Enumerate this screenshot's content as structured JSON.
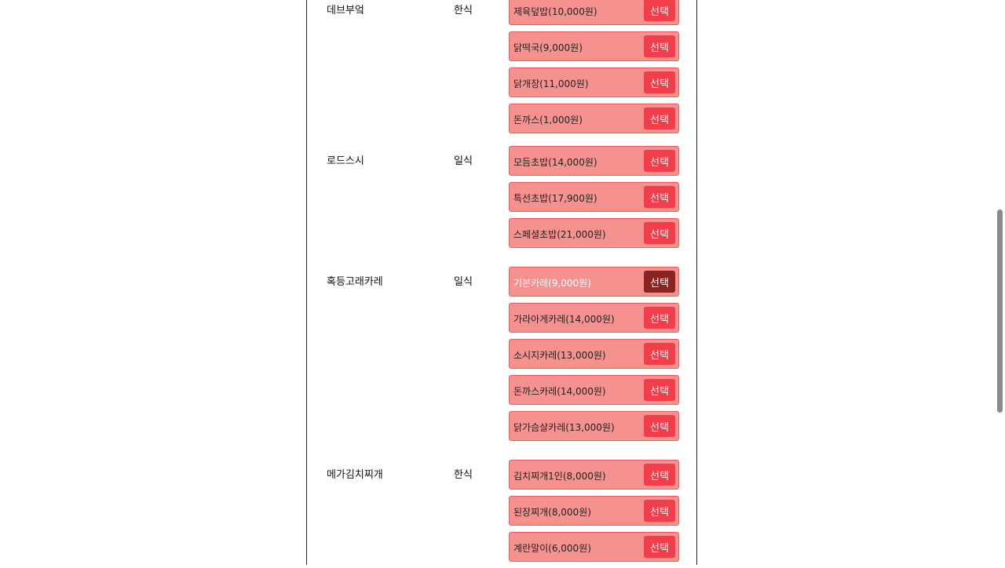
{
  "restaurants": [
    {
      "name": "데브부엌",
      "category": "한식",
      "menus": [
        {
          "label": "제육덮밥(10,000원)",
          "button": "선택",
          "selected": false
        },
        {
          "label": "닭떡국(9,000원)",
          "button": "선택",
          "selected": false
        },
        {
          "label": "닭개장(11,000원)",
          "button": "선택",
          "selected": false
        },
        {
          "label": "돈까스(1,000원)",
          "button": "선택",
          "selected": false
        }
      ]
    },
    {
      "name": "로드스시",
      "category": "일식",
      "menus": [
        {
          "label": "모듬초밥(14,000원)",
          "button": "선택",
          "selected": false
        },
        {
          "label": "특선초밥(17,900원)",
          "button": "선택",
          "selected": false
        },
        {
          "label": "스페셜초밥(21,000원)",
          "button": "선택",
          "selected": false
        }
      ]
    },
    {
      "name": "혹등고래카레",
      "category": "일식",
      "menus": [
        {
          "label": "기본카레(9,000원)",
          "button": "선택",
          "selected": true
        },
        {
          "label": "가라아게카레(14,000원)",
          "button": "선택",
          "selected": false
        },
        {
          "label": "소시지카레(13,000원)",
          "button": "선택",
          "selected": false
        },
        {
          "label": "돈까스카레(14,000원)",
          "button": "선택",
          "selected": false
        },
        {
          "label": "닭가슴살카레(13,000원)",
          "button": "선택",
          "selected": false
        }
      ]
    },
    {
      "name": "메가김치찌개",
      "category": "한식",
      "menus": [
        {
          "label": "김치찌개1인(8,000원)",
          "button": "선택",
          "selected": false
        },
        {
          "label": "된장찌개(8,000원)",
          "button": "선택",
          "selected": false
        },
        {
          "label": "계란말이(6,000원)",
          "button": "선택",
          "selected": false
        }
      ]
    }
  ],
  "scroll": {
    "position_fraction": 0.58,
    "visible_fraction": 0.36
  },
  "colors": {
    "menu_bg": "#f59290",
    "menu_border": "#ef5b5f",
    "button": "#f23e4a",
    "button_selected": "#8a2421"
  }
}
